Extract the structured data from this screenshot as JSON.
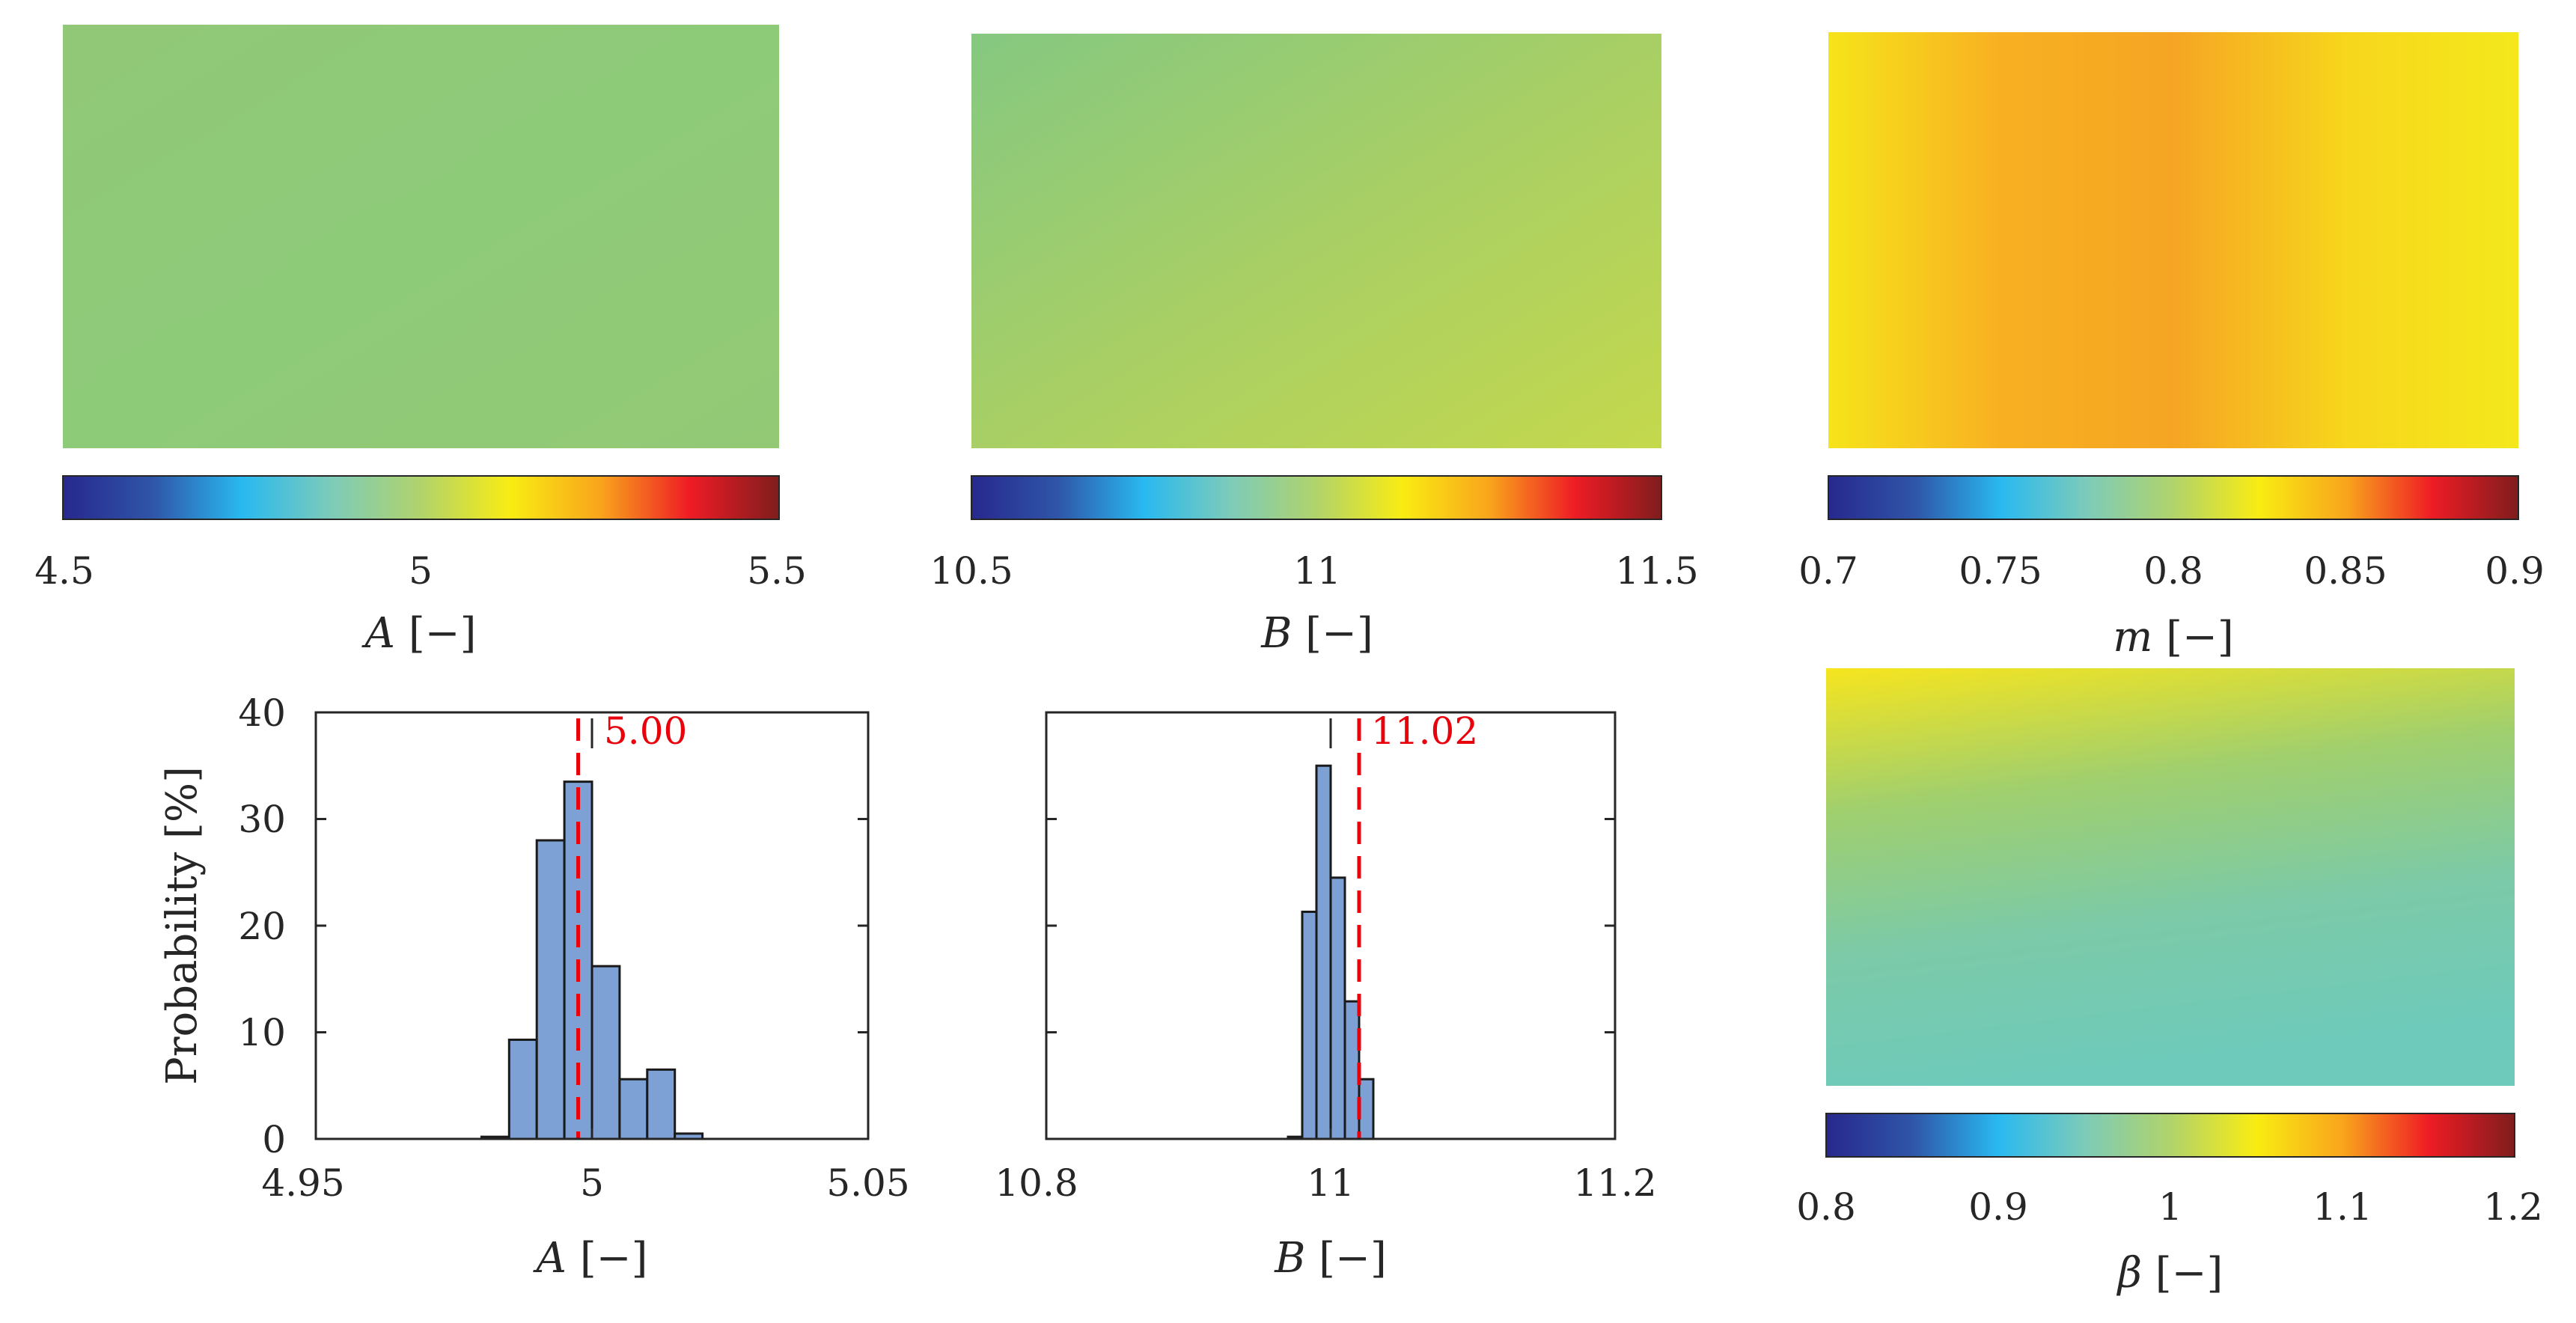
{
  "colors": {
    "bar_fill": "#7da1d4",
    "bar_stroke": "#1a1a1a",
    "mean_line": "#e8000b",
    "axis": "#262626",
    "colormap": [
      "#27288d",
      "#2f55a8",
      "#29b9f0",
      "#7dcbb9",
      "#b1d36b",
      "#f9ec12",
      "#f9a51c",
      "#ee1c25",
      "#7f1d1d"
    ]
  },
  "maps": [
    {
      "id": "A",
      "colorbar_ticks": [
        "4.5",
        "5",
        "5.5"
      ],
      "var": "A",
      "unit": "[−]",
      "field_colors": [
        "#90c878",
        "#8ecb79",
        "#93c975"
      ]
    },
    {
      "id": "B",
      "colorbar_ticks": [
        "10.5",
        "11",
        "11.5"
      ],
      "var": "B",
      "unit": "[−]",
      "field_colors": [
        "#85c881",
        "#a8cf65",
        "#c4d84c"
      ]
    },
    {
      "id": "m",
      "colorbar_ticks": [
        "0.7",
        "0.75",
        "0.8",
        "0.85",
        "0.9"
      ],
      "var": "m",
      "unit": "[−]",
      "field_colors": [
        "#f6e41a",
        "#f8b022",
        "#f5a523",
        "#f7d61c",
        "#f4e81c"
      ]
    },
    {
      "id": "beta",
      "colorbar_ticks": [
        "0.8",
        "0.9",
        "1",
        "1.1",
        "1.2"
      ],
      "var": "β",
      "unit": "[−]",
      "field_colors": [
        "#f7e51e",
        "#a0cf6e",
        "#7ccaa8",
        "#6ecaba"
      ]
    }
  ],
  "chart_data": [
    {
      "type": "bar",
      "id": "hist-A",
      "ylabel": "Probability [%]",
      "xvar": "A",
      "xunit": "[−]",
      "xlim": [
        4.95,
        5.05
      ],
      "ylim": [
        0,
        40
      ],
      "xticks": [
        "4.95",
        "5",
        "5.05"
      ],
      "yticks": [
        "0",
        "10",
        "20",
        "30",
        "40"
      ],
      "bin_width": 0.005,
      "bin_edges_start": [
        4.98,
        4.985,
        4.99,
        4.995,
        5.0,
        5.005,
        5.01,
        5.015
      ],
      "values": [
        0.2,
        9.3,
        28.0,
        33.5,
        16.2,
        5.6,
        6.5,
        0.5
      ],
      "mean": 4.9975,
      "mean_label": "5.00",
      "reference": 5.0
    },
    {
      "type": "bar",
      "id": "hist-B",
      "ylabel": "",
      "xvar": "B",
      "xunit": "[−]",
      "xlim": [
        10.8,
        11.2
      ],
      "ylim": [
        0,
        40
      ],
      "xticks": [
        "10.8",
        "11",
        "11.2"
      ],
      "yticks": [
        "0",
        "10",
        "20",
        "30",
        "40"
      ],
      "bin_width": 0.01,
      "bin_edges_start": [
        10.97,
        10.98,
        10.99,
        11.0,
        11.01,
        11.02,
        11.03,
        11.04,
        11.05
      ],
      "values": [
        0.2,
        21.3,
        35.0,
        24.5,
        12.9,
        5.6,
        0,
        0,
        0
      ],
      "mean": 11.02,
      "mean_label": "11.02",
      "reference": 11.0
    }
  ]
}
